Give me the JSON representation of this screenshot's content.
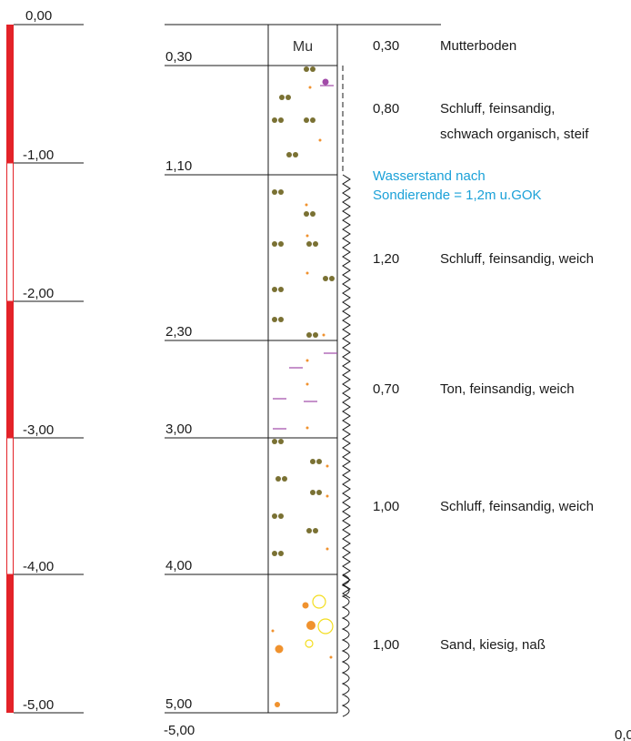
{
  "scale": {
    "labels": [
      "0,00",
      "-1,00",
      "-2,00",
      "-3,00",
      "-4,00",
      "-5,00"
    ],
    "colors": {
      "filled": "#e32228",
      "outline": "#e32228"
    }
  },
  "profile": {
    "depth_labels": [
      "0,30",
      "1,10",
      "2,30",
      "3,00",
      "4,00",
      "5,00"
    ],
    "bottom_label": "-5,00",
    "top_symbol": "Mu",
    "layers": [
      {
        "thickness": "0,30",
        "description": [
          "Mutterboden"
        ],
        "type": "topsoil"
      },
      {
        "thickness": "0,80",
        "description": [
          "Schluff, feinsandig,",
          "schwach organisch, steif"
        ],
        "type": "silt"
      },
      {
        "thickness": "1,20",
        "description": [
          "Schluff, feinsandig, weich"
        ],
        "type": "silt"
      },
      {
        "thickness": "0,70",
        "description": [
          "Ton, feinsandig, weich"
        ],
        "type": "clay"
      },
      {
        "thickness": "1,00",
        "description": [
          "Schluff, feinsandig, weich"
        ],
        "type": "silt"
      },
      {
        "thickness": "1,00",
        "description": [
          "Sand, kiesig, naß"
        ],
        "type": "sand"
      }
    ]
  },
  "water_note": [
    "Wasserstand nach",
    "Sondierende = 1,2m u.GOK"
  ],
  "corner_text": "0,0",
  "colors": {
    "silt": "#7a7133",
    "dot": "#f0922e",
    "clay": "#a14aa8",
    "sand_ring": "#f3dd1e",
    "water": "#1ba1d8",
    "line": "#1a1a1a"
  }
}
